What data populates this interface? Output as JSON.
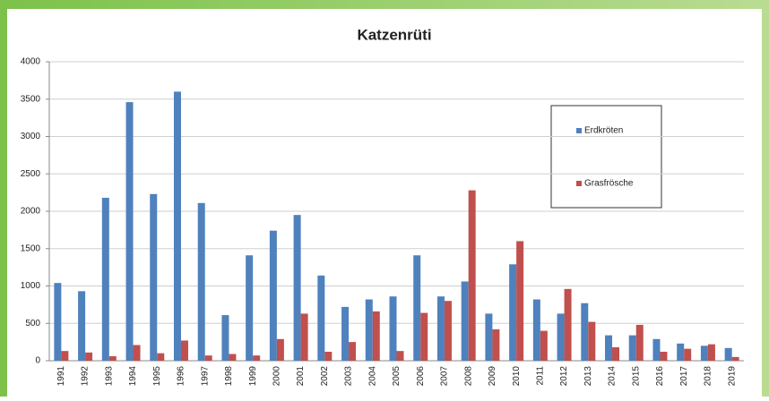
{
  "chart_data": {
    "type": "bar",
    "title": "Katzenrüti",
    "categories": [
      "1991",
      "1992",
      "1993",
      "1994",
      "1995",
      "1996",
      "1997",
      "1998",
      "1999",
      "2000",
      "2001",
      "2002",
      "2003",
      "2004",
      "2005",
      "2006",
      "2007",
      "2008",
      "2009",
      "2010",
      "2011",
      "2012",
      "2013",
      "2014",
      "2015",
      "2016",
      "2017",
      "2018",
      "2019"
    ],
    "series": [
      {
        "name": "Erdkröten",
        "color": "#4f81bd",
        "values": [
          1040,
          930,
          2180,
          3460,
          2230,
          3600,
          2110,
          610,
          1410,
          1740,
          1950,
          1140,
          720,
          820,
          860,
          1410,
          860,
          1060,
          630,
          1290,
          820,
          630,
          770,
          340,
          340,
          290,
          230,
          200,
          170
        ]
      },
      {
        "name": "Grasfrösche",
        "color": "#c0504d",
        "values": [
          130,
          110,
          60,
          210,
          100,
          270,
          70,
          90,
          70,
          290,
          630,
          120,
          250,
          660,
          130,
          640,
          800,
          2280,
          420,
          1600,
          400,
          960,
          520,
          180,
          480,
          120,
          160,
          220,
          50
        ]
      }
    ],
    "ylim": [
      0,
      4000
    ],
    "yticks": [
      0,
      500,
      1000,
      1500,
      2000,
      2500,
      3000,
      3500,
      4000
    ],
    "grid": true,
    "legend": "right"
  }
}
